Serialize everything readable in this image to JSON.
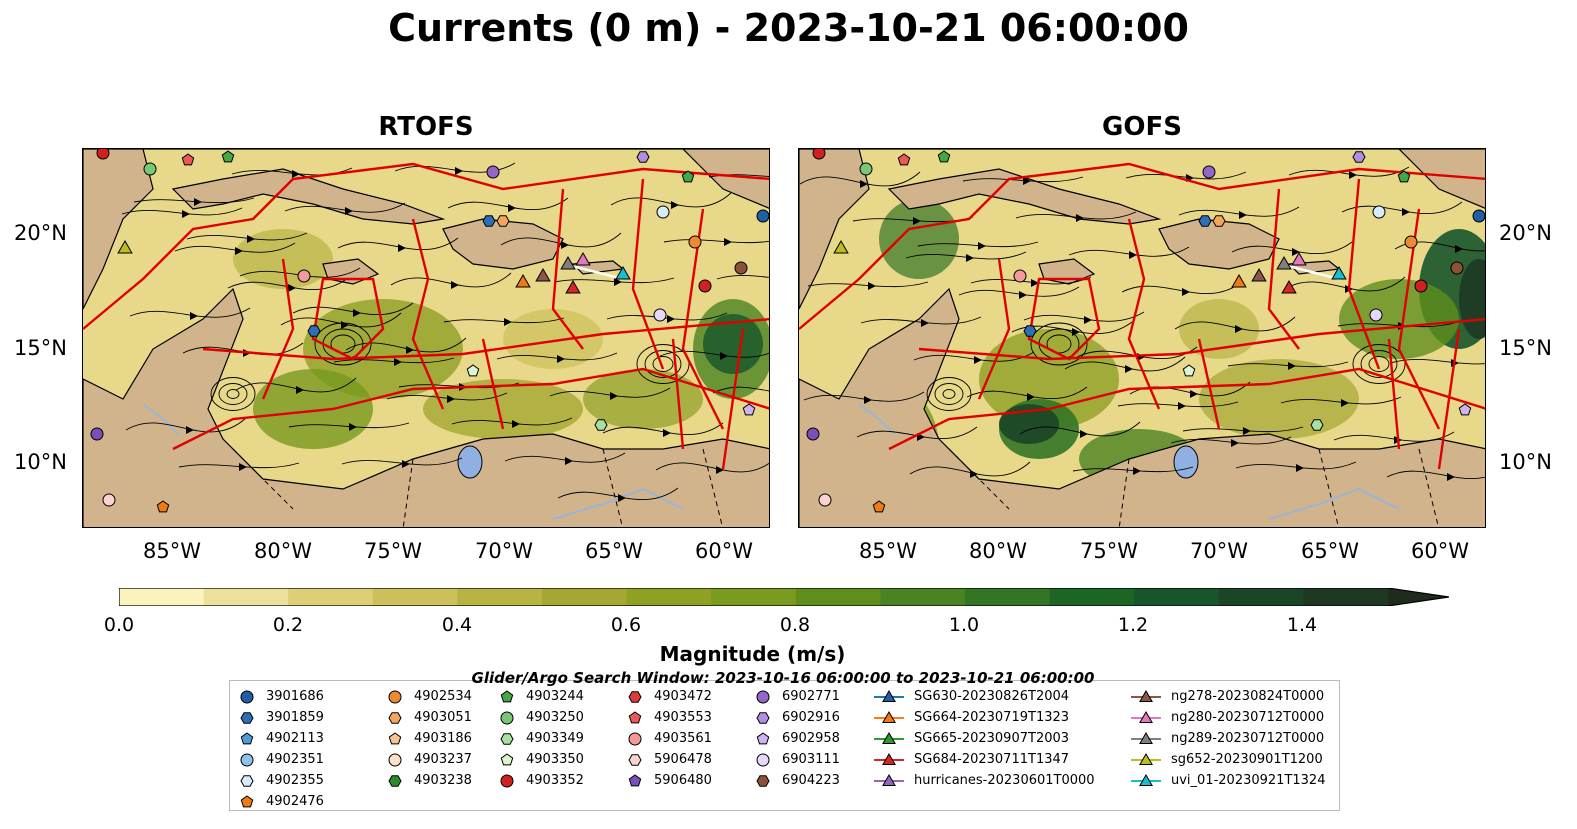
{
  "title": "Currents (0 m) - 2023-10-21 06:00:00",
  "panels": [
    {
      "name": "RTOFS"
    },
    {
      "name": "GOFS"
    }
  ],
  "lat_labels": [
    "20°N",
    "15°N",
    "10°N"
  ],
  "lon_labels": [
    "85°W",
    "80°W",
    "75°W",
    "70°W",
    "65°W",
    "60°W"
  ],
  "colorbar": {
    "label": "Magnitude (m/s)",
    "ticks": [
      "0.0",
      "0.2",
      "0.4",
      "0.6",
      "0.8",
      "1.0",
      "1.2",
      "1.4"
    ],
    "min": 0.0,
    "max": 1.5,
    "extend": "max",
    "colors": [
      "#fbf3bd",
      "#ede09a",
      "#dccf75",
      "#ccc05a",
      "#b8b443",
      "#a4a732",
      "#8fa025",
      "#789a1e",
      "#5f8e1d",
      "#4b8322",
      "#347525",
      "#1c6525",
      "#17552a",
      "#1b4527",
      "#1e3822",
      "#1f2b1c"
    ]
  },
  "legend": {
    "title": "Glider/Argo Search Window: 2023-10-16 06:00:00 to 2023-10-21 06:00:00",
    "columns": [
      [
        {
          "label": "3901686",
          "marker": "circle",
          "color": "#1f5fa5"
        },
        {
          "label": "3901859",
          "marker": "hexagon",
          "color": "#2a6fb8"
        },
        {
          "label": "4902113",
          "marker": "pentagon",
          "color": "#4f9bd6"
        },
        {
          "label": "4902351",
          "marker": "circle",
          "color": "#8cc2ec"
        },
        {
          "label": "4902355",
          "marker": "hexagon",
          "color": "#d7ecfa"
        },
        {
          "label": "4902476",
          "marker": "pentagon",
          "color": "#f07b12"
        }
      ],
      [
        {
          "label": "4902534",
          "marker": "circle",
          "color": "#f08a30"
        },
        {
          "label": "4903051",
          "marker": "hexagon",
          "color": "#f6a65c"
        },
        {
          "label": "4903186",
          "marker": "pentagon",
          "color": "#f8c394"
        },
        {
          "label": "4903237",
          "marker": "circle",
          "color": "#fde1c8"
        },
        {
          "label": "4903238",
          "marker": "hexagon",
          "color": "#2c8a2c"
        }
      ],
      [
        {
          "label": "4903244",
          "marker": "pentagon",
          "color": "#45a845"
        },
        {
          "label": "4903250",
          "marker": "circle",
          "color": "#78c878"
        },
        {
          "label": "4903349",
          "marker": "hexagon",
          "color": "#a8e0a0"
        },
        {
          "label": "4903350",
          "marker": "pentagon",
          "color": "#daf5cf"
        },
        {
          "label": "4903352",
          "marker": "circle",
          "color": "#d02020"
        }
      ],
      [
        {
          "label": "4903472",
          "marker": "hexagon",
          "color": "#e03a3a"
        },
        {
          "label": "4903553",
          "marker": "pentagon",
          "color": "#e85a5a"
        },
        {
          "label": "4903561",
          "marker": "circle",
          "color": "#f39a9a"
        },
        {
          "label": "5906478",
          "marker": "hexagon",
          "color": "#fbd2d2"
        },
        {
          "label": "5906480",
          "marker": "pentagon",
          "color": "#7a4fb8"
        }
      ],
      [
        {
          "label": "6902771",
          "marker": "circle",
          "color": "#9466c7"
        },
        {
          "label": "6902916",
          "marker": "hexagon",
          "color": "#b08ee0"
        },
        {
          "label": "6902958",
          "marker": "pentagon",
          "color": "#cdb4f0"
        },
        {
          "label": "6903111",
          "marker": "circle",
          "color": "#e6d8fa"
        },
        {
          "label": "6904223",
          "marker": "hexagon",
          "color": "#8c5238"
        }
      ],
      [
        {
          "label": "SG630-20230826T2004",
          "marker": "triangle",
          "color": "#1f5fa5",
          "line": "#1f77b4"
        },
        {
          "label": "SG664-20230719T1323",
          "marker": "triangle",
          "color": "#f07b12",
          "line": "#ff7f0e"
        },
        {
          "label": "SG665-20230907T2003",
          "marker": "triangle",
          "color": "#2c9a2c",
          "line": "#2ca02c"
        },
        {
          "label": "SG684-20230711T1347",
          "marker": "triangle",
          "color": "#d62728",
          "line": "#d62728"
        },
        {
          "label": "hurricanes-20230601T0000",
          "marker": "triangle",
          "color": "#9467bd",
          "line": "#9467bd"
        }
      ],
      [
        {
          "label": "ng278-20230824T0000",
          "marker": "triangle",
          "color": "#8c564b",
          "line": "#8c564b"
        },
        {
          "label": "ng280-20230712T0000",
          "marker": "triangle",
          "color": "#e377c2",
          "line": "#e377c2"
        },
        {
          "label": "ng289-20230712T0000",
          "marker": "triangle",
          "color": "#7f7f7f",
          "line": "#7f7f7f"
        },
        {
          "label": "sg652-20230901T1200",
          "marker": "triangle",
          "color": "#bcbd22",
          "line": "#bcbd22"
        },
        {
          "label": "uvi_01-20230921T1324",
          "marker": "triangle",
          "color": "#17becf",
          "line": "#17becf"
        }
      ]
    ]
  }
}
